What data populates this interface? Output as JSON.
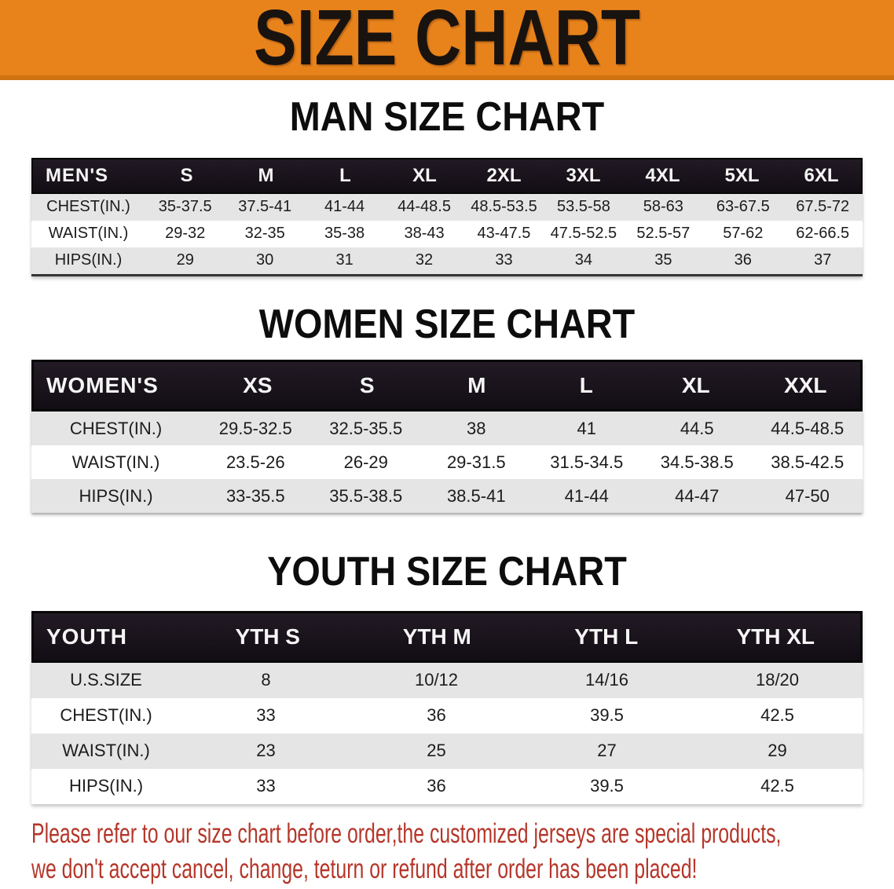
{
  "banner": {
    "title": "SIZE CHART"
  },
  "colors": {
    "banner_bg": "#e8831c",
    "header_bar_bg": "#181119",
    "alt_row_bg": "#e5e5e5",
    "disclaimer_text": "#b5362a"
  },
  "sections": [
    {
      "id": "men",
      "heading": "MAN SIZE CHART",
      "table": {
        "header_label": "MEN'S",
        "columns": [
          "S",
          "M",
          "L",
          "XL",
          "2XL",
          "3XL",
          "4XL",
          "5XL",
          "6XL"
        ],
        "rows": [
          {
            "label": "CHEST(IN.)",
            "values": [
              "35-37.5",
              "37.5-41",
              "41-44",
              "44-48.5",
              "48.5-53.5",
              "53.5-58",
              "58-63",
              "63-67.5",
              "67.5-72"
            ]
          },
          {
            "label": "WAIST(IN.)",
            "values": [
              "29-32",
              "32-35",
              "35-38",
              "38-43",
              "43-47.5",
              "47.5-52.5",
              "52.5-57",
              "57-62",
              "62-66.5"
            ]
          },
          {
            "label": "HIPS(IN.)",
            "values": [
              "29",
              "30",
              "31",
              "32",
              "33",
              "34",
              "35",
              "36",
              "37"
            ]
          }
        ]
      }
    },
    {
      "id": "women",
      "heading": "WOMEN SIZE CHART",
      "table": {
        "header_label": "WOMEN'S",
        "columns": [
          "XS",
          "S",
          "M",
          "L",
          "XL",
          "XXL"
        ],
        "rows": [
          {
            "label": "CHEST(IN.)",
            "values": [
              "29.5-32.5",
              "32.5-35.5",
              "38",
              "41",
              "44.5",
              "44.5-48.5"
            ]
          },
          {
            "label": "WAIST(IN.)",
            "values": [
              "23.5-26",
              "26-29",
              "29-31.5",
              "31.5-34.5",
              "34.5-38.5",
              "38.5-42.5"
            ]
          },
          {
            "label": "HIPS(IN.)",
            "values": [
              "33-35.5",
              "35.5-38.5",
              "38.5-41",
              "41-44",
              "44-47",
              "47-50"
            ]
          }
        ]
      }
    },
    {
      "id": "youth",
      "heading": "YOUTH SIZE CHART",
      "table": {
        "header_label": "YOUTH",
        "columns": [
          "YTH S",
          "YTH M",
          "YTH L",
          "YTH XL"
        ],
        "rows": [
          {
            "label": "U.S.SIZE",
            "values": [
              "8",
              "10/12",
              "14/16",
              "18/20"
            ]
          },
          {
            "label": "CHEST(IN.)",
            "values": [
              "33",
              "36",
              "39.5",
              "42.5"
            ]
          },
          {
            "label": "WAIST(IN.)",
            "values": [
              "23",
              "25",
              "27",
              "29"
            ]
          },
          {
            "label": "HIPS(IN.)",
            "values": [
              "33",
              "36",
              "39.5",
              "42.5"
            ]
          }
        ]
      }
    }
  ],
  "disclaimer": {
    "line1": "Please refer to our size chart before order,the customized jerseys are special products,",
    "line2": "we don't accept cancel, change, teturn or refund after order has been placed!"
  }
}
